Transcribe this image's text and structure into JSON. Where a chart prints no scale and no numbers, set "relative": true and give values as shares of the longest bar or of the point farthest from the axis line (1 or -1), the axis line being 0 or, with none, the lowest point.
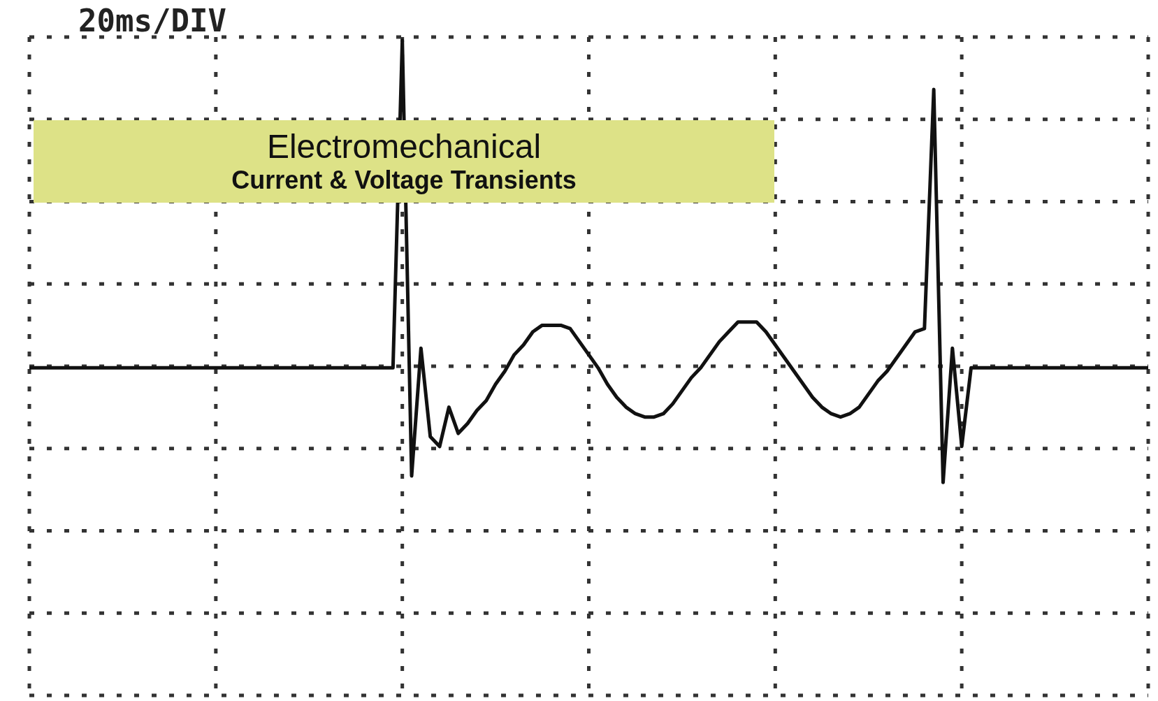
{
  "chart_data": {
    "type": "line",
    "title": "20ms/DIV",
    "annotations": [
      "Electromechanical",
      "Current & Voltage Transients"
    ],
    "relative": true,
    "grid": true,
    "color": "#111111",
    "categories": [
      null,
      null,
      null,
      null,
      null,
      null,
      null,
      null,
      null,
      null,
      null,
      null,
      null,
      null,
      null,
      null,
      null,
      null,
      null,
      null,
      null,
      null,
      null,
      null,
      null,
      null,
      null,
      null,
      null,
      null,
      null,
      null,
      null,
      null,
      null,
      null,
      null,
      null,
      null,
      null,
      null,
      null,
      null,
      null,
      null,
      null,
      null,
      null,
      null,
      null,
      null,
      null,
      null,
      null,
      null,
      null,
      null,
      null,
      null,
      null,
      null,
      null,
      null,
      null,
      null,
      null,
      null,
      null,
      null,
      null,
      null,
      null,
      null,
      null,
      null,
      null,
      null,
      null,
      null,
      null,
      null,
      null,
      null,
      null,
      null,
      null,
      null,
      null,
      null,
      null,
      null,
      null,
      null,
      null,
      null,
      null,
      null,
      null,
      null,
      null,
      null,
      null,
      null,
      null,
      null,
      null,
      null,
      null,
      null,
      null,
      null,
      null,
      null,
      null,
      null,
      null,
      null,
      null,
      null,
      null,
      null
    ],
    "values": [
      0,
      0,
      0,
      0,
      0,
      0,
      0,
      0,
      0,
      0,
      0,
      0,
      0,
      0,
      0,
      0,
      0,
      0,
      0,
      0,
      0,
      0,
      0,
      0,
      0,
      0,
      0,
      0,
      0,
      0,
      0,
      0,
      0,
      0,
      0,
      0,
      0,
      0,
      0,
      0,
      1,
      -0.33,
      0.06,
      -0.21,
      -0.24,
      -0.12,
      -0.2,
      -0.17,
      -0.13,
      -0.1,
      -0.05,
      -0.01,
      0.04,
      0.07,
      0.11,
      0.13,
      0.13,
      0.13,
      0.12,
      0.08,
      0.04,
      0,
      -0.05,
      -0.09,
      -0.12,
      -0.14,
      -0.15,
      -0.15,
      -0.14,
      -0.11,
      -0.07,
      -0.03,
      0,
      0.04,
      0.08,
      0.11,
      0.14,
      0.14,
      0.14,
      0.11,
      0.07,
      0.03,
      -0.01,
      -0.05,
      -0.09,
      -0.12,
      -0.14,
      -0.15,
      -0.14,
      -0.12,
      -0.08,
      -0.04,
      -0.01,
      0.03,
      0.07,
      0.11,
      0.12,
      0.85,
      -0.35,
      0.06,
      -0.24,
      0,
      0,
      0,
      0,
      0,
      0,
      0,
      0,
      0,
      0,
      0,
      0,
      0,
      0,
      0,
      0,
      0,
      0,
      0,
      0
    ]
  }
}
